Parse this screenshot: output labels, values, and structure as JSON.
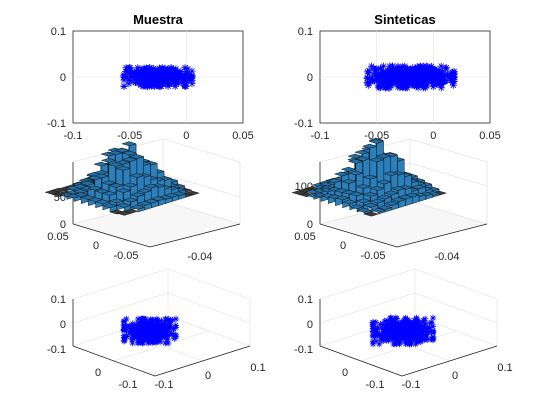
{
  "figure": {
    "left_column_title": "Muestra",
    "right_column_title": "Sinteticas",
    "marker_color": "#0000ff",
    "bar_color": "#1f6fa8",
    "scatter_marker_color": "#3a3a3a"
  },
  "chart_data": [
    {
      "id": "muestra-scatter",
      "type": "scatter",
      "title": "Muestra",
      "marker": "asterisk",
      "xlim": [
        -0.1,
        0.05
      ],
      "ylim": [
        -0.1,
        0.1
      ],
      "xticks": [
        "-0.1",
        "-0.05",
        "0",
        "0.05"
      ],
      "yticks": [
        "0.1",
        "0",
        "-0.1"
      ],
      "cluster": {
        "center_x": -0.025,
        "center_y": 0.0,
        "spread_x": 0.022,
        "spread_y": 0.012
      },
      "grid": true
    },
    {
      "id": "sinteticas-scatter",
      "type": "scatter",
      "title": "Sinteticas",
      "marker": "asterisk",
      "xlim": [
        -0.1,
        0.05
      ],
      "ylim": [
        -0.1,
        0.1
      ],
      "xticks": [
        "-0.1",
        "-0.05",
        "0",
        "0.05"
      ],
      "yticks": [
        "0.1",
        "0",
        "-0.1"
      ],
      "cluster": {
        "center_x": -0.02,
        "center_y": 0.0,
        "spread_x": 0.028,
        "spread_y": 0.014
      },
      "grid": true
    },
    {
      "id": "muestra-hist3d",
      "type": "bar",
      "subtype": "3d-histogram",
      "zlim": [
        0,
        90
      ],
      "zticks": [
        "50",
        "0"
      ],
      "xticks": [
        "0.05",
        "0"
      ],
      "yticks": [
        "-0.05",
        "-0.04"
      ],
      "peak_count": 85
    },
    {
      "id": "sinteticas-hist3d",
      "type": "bar",
      "subtype": "3d-histogram",
      "zlim": [
        0,
        150
      ],
      "zticks": [
        "100",
        "0"
      ],
      "xticks": [
        "0.05",
        "0"
      ],
      "yticks": [
        "-0.05",
        "-0.04"
      ],
      "peak_count": 145
    },
    {
      "id": "muestra-scatter3d",
      "type": "scatter",
      "subtype": "3d",
      "marker": "asterisk",
      "zticks": [
        "0.1",
        "0",
        "-0.1"
      ],
      "xticks": [
        "0",
        "-0.1"
      ],
      "yticks": [
        "-0.1",
        "0",
        "0.1"
      ],
      "grid": true
    },
    {
      "id": "sinteticas-scatter3d",
      "type": "scatter",
      "subtype": "3d",
      "marker": "asterisk",
      "zticks": [
        "0.1",
        "0",
        "-0.1"
      ],
      "xticks": [
        "0",
        "-0.1"
      ],
      "yticks": [
        "-0.1",
        "0",
        "0.1"
      ],
      "grid": true
    }
  ]
}
